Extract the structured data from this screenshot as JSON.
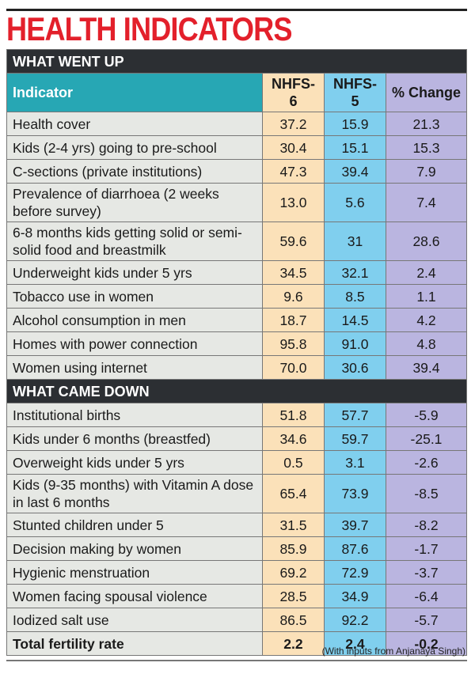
{
  "header": {
    "title": "HEALTH INDICATORS"
  },
  "table": {
    "columns": [
      "Indicator",
      "NHFS-6",
      "NHFS-5",
      "% Change"
    ],
    "sections": [
      {
        "title": "WHAT WENT UP",
        "rows": [
          [
            "Health cover",
            "37.2",
            "15.9",
            "21.3"
          ],
          [
            "Kids (2-4 yrs) going to pre-school",
            "30.4",
            "15.1",
            "15.3"
          ],
          [
            "C-sections (private institutions)",
            "47.3",
            "39.4",
            "7.9"
          ],
          [
            "Prevalence of diarrhoea (2 weeks before survey)",
            "13.0",
            "5.6",
            "7.4"
          ],
          [
            "6-8 months kids getting solid or semi-solid food and breastmilk",
            "59.6",
            "31",
            "28.6"
          ],
          [
            "Underweight kids under 5 yrs",
            "34.5",
            "32.1",
            "2.4"
          ],
          [
            "Tobacco use in women",
            "9.6",
            "8.5",
            "1.1"
          ],
          [
            "Alcohol consumption in men",
            "18.7",
            "14.5",
            "4.2"
          ],
          [
            "Homes with power connection",
            "95.8",
            "91.0",
            "4.8"
          ],
          [
            "Women using internet",
            "70.0",
            "30.6",
            "39.4"
          ]
        ]
      },
      {
        "title": "WHAT CAME DOWN",
        "rows": [
          [
            "Institutional births",
            "51.8",
            "57.7",
            "-5.9"
          ],
          [
            "Kids under 6 months (breastfed)",
            "34.6",
            "59.7",
            "-25.1"
          ],
          [
            "Overweight kids under 5 yrs",
            "0.5",
            "3.1",
            "-2.6"
          ],
          [
            "Kids (9-35 months) with Vitamin A dose in last 6 months",
            "65.4",
            "73.9",
            "-8.5"
          ],
          [
            "Stunted children under 5",
            "31.5",
            "39.7",
            "-8.2"
          ],
          [
            "Decision making by women",
            "85.9",
            "87.6",
            "-1.7"
          ],
          [
            "Hygienic menstruation",
            "69.2",
            "72.9",
            "-3.7"
          ],
          [
            "Women facing spousal violence",
            "28.5",
            "34.9",
            "-6.4"
          ],
          [
            "Iodized salt use",
            "86.5",
            "92.2",
            "-5.7"
          ],
          [
            "Total fertility rate",
            "2.2",
            "2.4",
            "-0.2"
          ]
        ]
      }
    ]
  },
  "footnote": "(With inputs from Anjanaya Singh)"
}
